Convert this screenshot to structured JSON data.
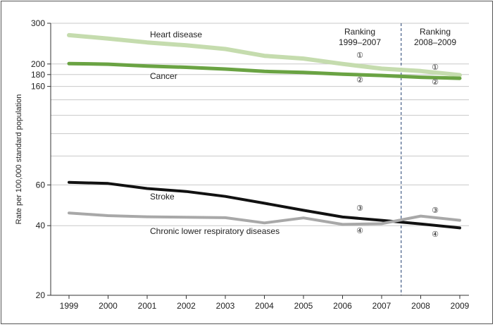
{
  "chart_data": {
    "type": "line",
    "title": "",
    "xlabel": "",
    "ylabel": "Rate per 100,000 standard population",
    "y_scale": "log",
    "ylim": [
      20,
      300
    ],
    "y_ticks": [
      20,
      40,
      60,
      160,
      180,
      200,
      300
    ],
    "y_gridlines": [
      20,
      40,
      60,
      80,
      100,
      120,
      140,
      160,
      180,
      200,
      300
    ],
    "categories": [
      "1999",
      "2000",
      "2001",
      "2002",
      "2003",
      "2004",
      "2005",
      "2006",
      "2007",
      "2008",
      "2009"
    ],
    "series": [
      {
        "name": "Heart disease",
        "color": "#c5dcae",
        "values": [
          266.5,
          257.6,
          247.8,
          240.8,
          232.3,
          217.0,
          211.1,
          200.2,
          190.9,
          186.5,
          179.1
        ]
      },
      {
        "name": "Cancer",
        "color": "#6aa343",
        "values": [
          200.8,
          199.6,
          196.0,
          193.5,
          190.1,
          185.8,
          183.8,
          180.7,
          178.4,
          175.3,
          173.5
        ]
      },
      {
        "name": "Stroke",
        "color": "#111111",
        "values": [
          61.6,
          60.9,
          57.9,
          56.2,
          53.5,
          50.0,
          46.6,
          43.6,
          42.2,
          40.7,
          39.1
        ]
      },
      {
        "name": "Chronic lower respiratory diseases",
        "color": "#a8a8a8",
        "values": [
          45.4,
          44.2,
          43.7,
          43.5,
          43.3,
          41.1,
          43.2,
          40.5,
          40.8,
          44.0,
          42.2
        ]
      }
    ],
    "divider": {
      "between": [
        "2007",
        "2008"
      ],
      "style": "dashed",
      "color": "#1f3c6e"
    },
    "period_labels": [
      {
        "line1": "Ranking",
        "line2": "1999–2007"
      },
      {
        "line1": "Ranking",
        "line2": "2008–2009"
      }
    ],
    "rank_markers": [
      {
        "series": "Heart disease",
        "rank": "①",
        "period": "1999–2007"
      },
      {
        "series": "Cancer",
        "rank": "②",
        "period": "1999–2007"
      },
      {
        "series": "Stroke",
        "rank": "③",
        "period": "1999–2007"
      },
      {
        "series": "Chronic lower respiratory diseases",
        "rank": "④",
        "period": "1999–2007"
      },
      {
        "series": "Heart disease",
        "rank": "①",
        "period": "2008–2009"
      },
      {
        "series": "Cancer",
        "rank": "②",
        "period": "2008–2009"
      },
      {
        "series": "Chronic lower respiratory diseases",
        "rank": "③",
        "period": "2008–2009"
      },
      {
        "series": "Stroke",
        "rank": "④",
        "period": "2008–2009"
      }
    ]
  }
}
